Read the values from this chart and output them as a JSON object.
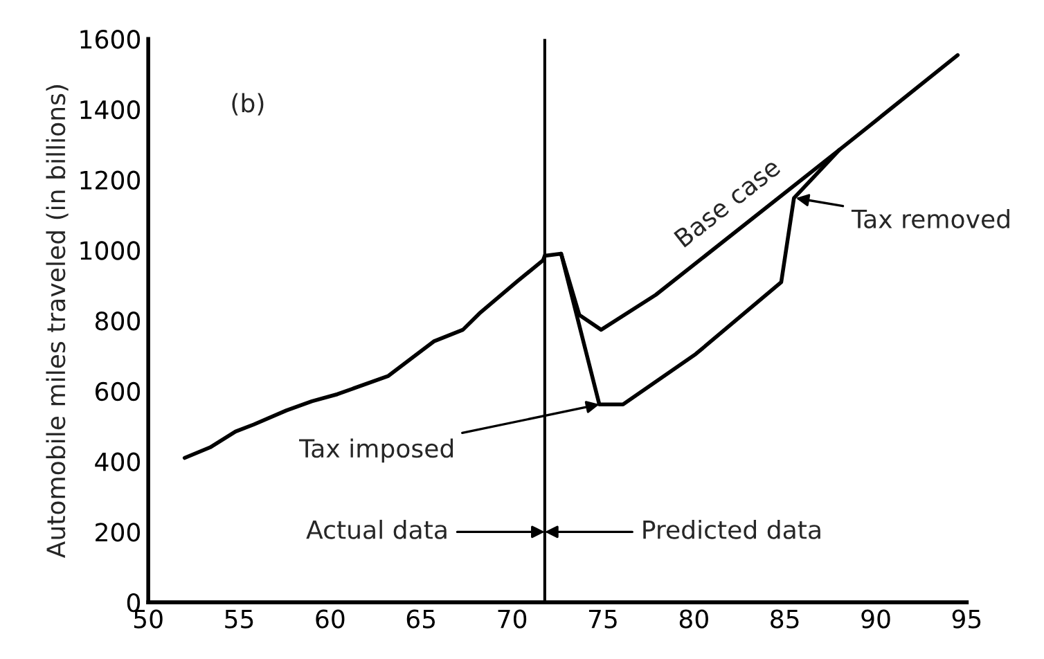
{
  "chart_data": {
    "type": "line",
    "ylabel": "Automobile miles traveled (in billions)",
    "xlim": [
      50,
      95
    ],
    "ylim": [
      0,
      1600
    ],
    "xticks": [
      50,
      55,
      60,
      65,
      70,
      75,
      80,
      85,
      90,
      95
    ],
    "yticks": [
      0,
      200,
      400,
      600,
      800,
      1000,
      1200,
      1400,
      1600
    ],
    "grid": false,
    "legend": false,
    "marker": "none",
    "line_style": "solid",
    "series": [
      {
        "color": "#000000",
        "x": [
          52.0,
          53.4,
          54.8,
          55.8,
          57.6,
          59.0,
          60.4,
          63.2,
          65.7,
          67.3,
          68.2,
          70.3,
          71.7,
          71.8
        ],
        "values": [
          410,
          440,
          485,
          505,
          545,
          571,
          591,
          643,
          741,
          774,
          820,
          912,
          971,
          984
        ]
      },
      {
        "color": "#000000",
        "x": [
          71.8,
          72.7,
          73.7,
          74.9,
          77.9,
          88.0,
          89.6,
          94.5
        ],
        "values": [
          984,
          990,
          816,
          774,
          873,
          1285,
          1351,
          1554
        ]
      },
      {
        "color": "#000000",
        "x": [
          72.7,
          74.8,
          76.1,
          80.1,
          84.8,
          85.5,
          88.0
        ],
        "values": [
          990,
          562,
          562,
          705,
          909,
          1148,
          1285
        ]
      }
    ],
    "ref_lines": [
      {
        "axis": "x",
        "value": 71.8,
        "color": "#000000"
      }
    ],
    "annotations": [
      "(b)",
      {
        "text": "Base case",
        "x": 80.0,
        "y": 959
      },
      {
        "text": "Tax imposed",
        "x": 74.8,
        "y": 562
      },
      {
        "text": "Tax removed",
        "x": 85.6,
        "y": 1148
      },
      "Actual data",
      "Predicted data"
    ]
  }
}
